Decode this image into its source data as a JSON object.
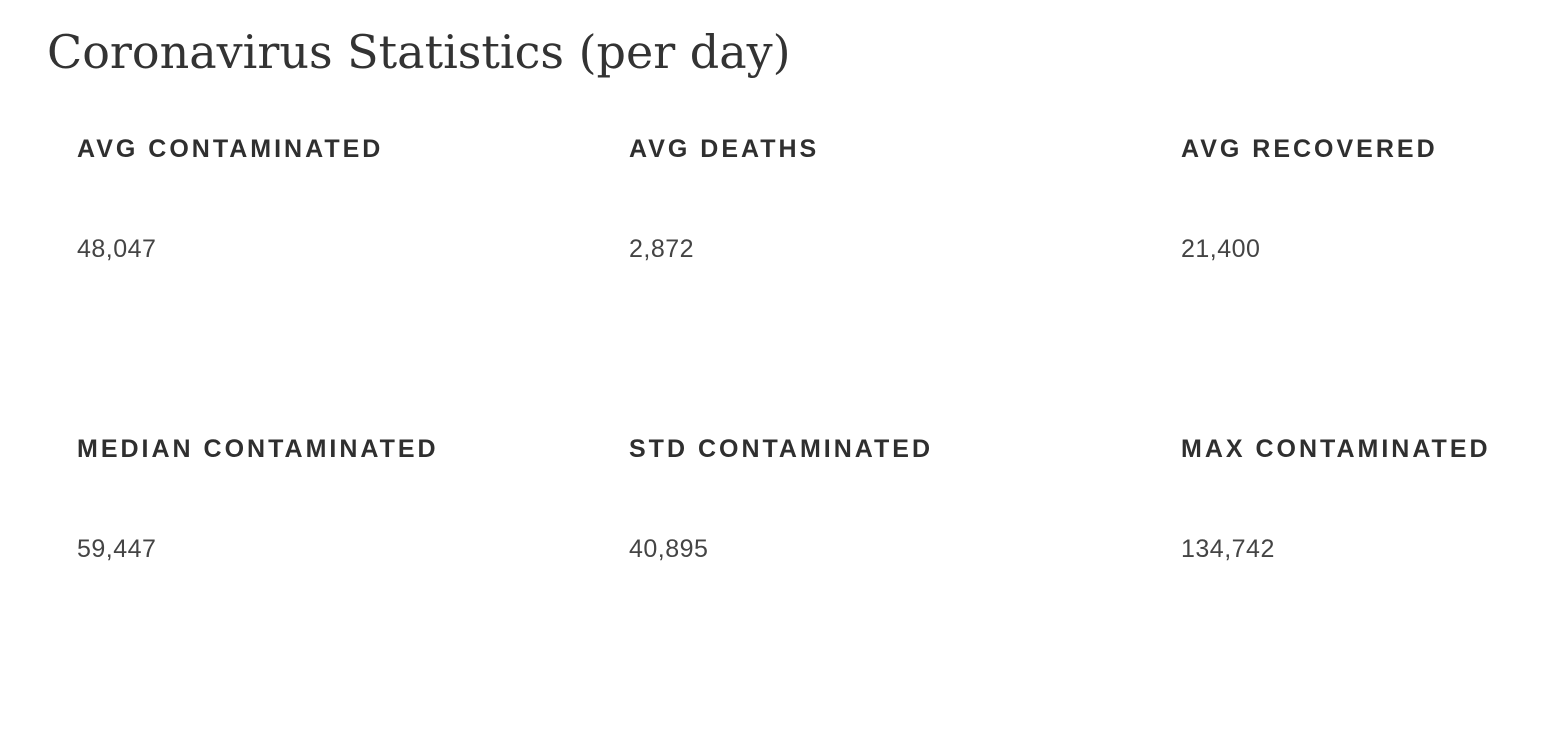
{
  "page": {
    "title": "Coronavirus Statistics (per day)"
  },
  "stats": [
    {
      "label": "AVG CONTAMINATED",
      "value": "48,047"
    },
    {
      "label": "AVG DEATHS",
      "value": "2,872"
    },
    {
      "label": "AVG RECOVERED",
      "value": "21,400"
    },
    {
      "label": "MEDIAN CONTAMINATED",
      "value": "59,447"
    },
    {
      "label": "STD CONTAMINATED",
      "value": "40,895"
    },
    {
      "label": "MAX CONTAMINATED",
      "value": "134,742"
    }
  ],
  "colors": {
    "text": "#333333",
    "background": "#ffffff"
  }
}
